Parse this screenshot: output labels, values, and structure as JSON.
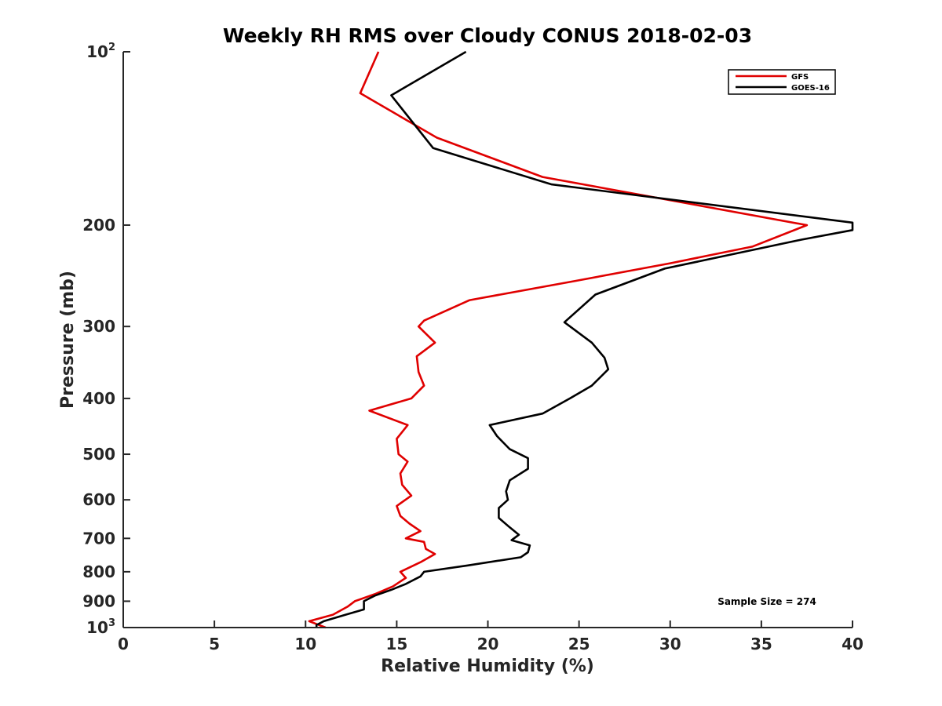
{
  "chart_data": {
    "type": "line",
    "title": "Weekly RH RMS over Cloudy CONUS 2018-02-03",
    "xlabel": "Relative Humidity (%)",
    "ylabel": "Pressure (mb)",
    "xlim": [
      0,
      40
    ],
    "ylim": [
      100,
      1000
    ],
    "yscale": "log",
    "y_reversed": true,
    "grid": false,
    "legend_position": "top-right",
    "annotation": "Sample Size = 274",
    "xticks": [
      0,
      5,
      10,
      15,
      20,
      25,
      30,
      35,
      40
    ],
    "yticks": [
      {
        "value": 100,
        "base": "10",
        "exp": "2"
      },
      {
        "value": 200,
        "label": "200"
      },
      {
        "value": 300,
        "label": "300"
      },
      {
        "value": 400,
        "label": "400"
      },
      {
        "value": 500,
        "label": "500"
      },
      {
        "value": 600,
        "label": "600"
      },
      {
        "value": 700,
        "label": "700"
      },
      {
        "value": 800,
        "label": "800"
      },
      {
        "value": 900,
        "label": "900"
      },
      {
        "value": 1000,
        "base": "10",
        "exp": "3"
      }
    ],
    "series": [
      {
        "name": "GFS",
        "color": "#e00000",
        "points": [
          [
            14.0,
            100
          ],
          [
            13.0,
            118
          ],
          [
            17.2,
            141
          ],
          [
            23.0,
            165
          ],
          [
            37.5,
            200
          ],
          [
            34.5,
            218
          ],
          [
            30.0,
            233
          ],
          [
            24.8,
            250
          ],
          [
            19.0,
            270
          ],
          [
            16.5,
            293
          ],
          [
            16.2,
            300
          ],
          [
            17.1,
            320
          ],
          [
            16.1,
            338
          ],
          [
            16.2,
            360
          ],
          [
            16.5,
            380
          ],
          [
            15.8,
            400
          ],
          [
            13.5,
            420
          ],
          [
            15.6,
            445
          ],
          [
            15.0,
            470
          ],
          [
            15.1,
            500
          ],
          [
            15.6,
            515
          ],
          [
            15.2,
            540
          ],
          [
            15.3,
            565
          ],
          [
            15.8,
            590
          ],
          [
            15.0,
            615
          ],
          [
            15.2,
            640
          ],
          [
            15.7,
            660
          ],
          [
            16.3,
            680
          ],
          [
            15.5,
            700
          ],
          [
            16.5,
            710
          ],
          [
            16.6,
            730
          ],
          [
            17.1,
            745
          ],
          [
            16.3,
            770
          ],
          [
            15.2,
            800
          ],
          [
            15.5,
            820
          ],
          [
            14.8,
            848
          ],
          [
            13.8,
            875
          ],
          [
            12.7,
            900
          ],
          [
            12.3,
            920
          ],
          [
            11.5,
            950
          ],
          [
            10.2,
            975
          ],
          [
            11.1,
            1000
          ]
        ]
      },
      {
        "name": "GOES-16",
        "color": "#000000",
        "points": [
          [
            18.8,
            100
          ],
          [
            14.7,
            119
          ],
          [
            17.0,
            147
          ],
          [
            23.5,
            170
          ],
          [
            40.0,
            198
          ],
          [
            40.0,
            204
          ],
          [
            37.2,
            212
          ],
          [
            29.7,
            238
          ],
          [
            25.9,
            264
          ],
          [
            24.2,
            295
          ],
          [
            25.7,
            320
          ],
          [
            26.4,
            340
          ],
          [
            26.6,
            356
          ],
          [
            25.7,
            380
          ],
          [
            24.5,
            400
          ],
          [
            23.0,
            425
          ],
          [
            20.1,
            445
          ],
          [
            20.5,
            465
          ],
          [
            21.2,
            490
          ],
          [
            22.2,
            508
          ],
          [
            22.2,
            530
          ],
          [
            21.2,
            555
          ],
          [
            21.0,
            580
          ],
          [
            21.1,
            600
          ],
          [
            20.6,
            620
          ],
          [
            20.6,
            645
          ],
          [
            21.2,
            670
          ],
          [
            21.7,
            690
          ],
          [
            21.3,
            705
          ],
          [
            22.3,
            720
          ],
          [
            22.2,
            740
          ],
          [
            21.8,
            755
          ],
          [
            18.9,
            780
          ],
          [
            16.5,
            800
          ],
          [
            16.3,
            815
          ],
          [
            15.5,
            840
          ],
          [
            14.7,
            860
          ],
          [
            13.8,
            880
          ],
          [
            13.2,
            900
          ],
          [
            13.2,
            930
          ],
          [
            12.2,
            950
          ],
          [
            11.0,
            975
          ],
          [
            10.6,
            990
          ],
          [
            10.6,
            1000
          ]
        ]
      }
    ]
  }
}
